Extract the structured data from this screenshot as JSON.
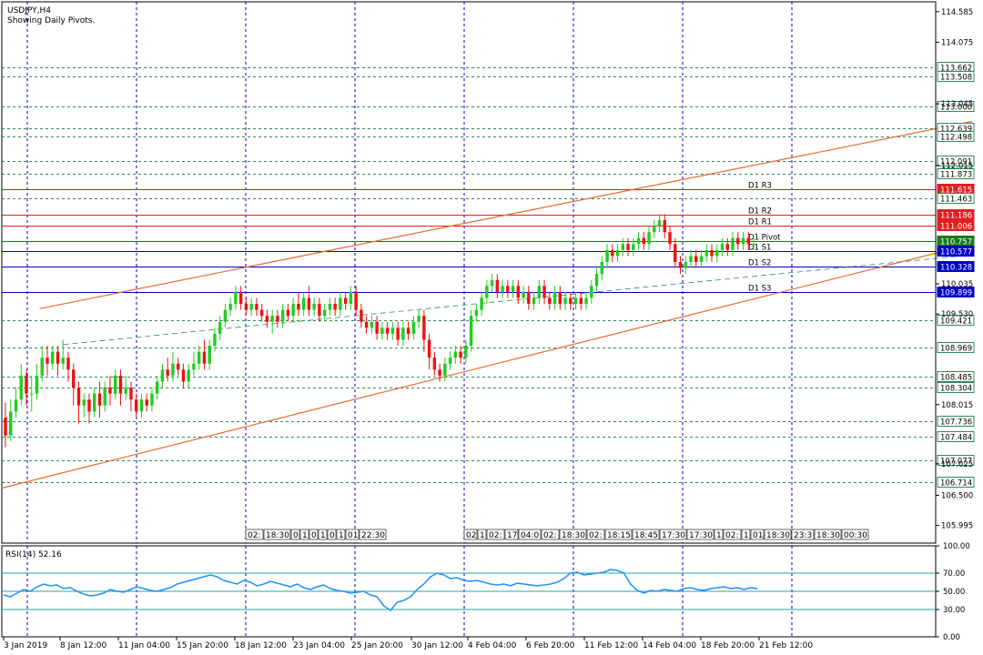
{
  "header": {
    "symbol": "USDJPY,H4",
    "subtitle": "Showing Daily Pivots."
  },
  "chart_data": {
    "type": "candlestick",
    "ylim": [
      105.7,
      114.75
    ],
    "price_ticks": [
      "114.585",
      "114.075",
      "113.045",
      "112.015",
      "110.035",
      "109.530",
      "108.015",
      "107.025",
      "106.500",
      "105.995"
    ],
    "x_labels": [
      "3 Jan 2019",
      "8 Jan 12:00",
      "11 Jan 04:00",
      "15 Jan 20:00",
      "18 Jan 12:00",
      "23 Jan 04:00",
      "25 Jan 20:00",
      "30 Jan 12:00",
      "4 Feb 04:00",
      "6 Feb 20:00",
      "11 Feb 12:00",
      "14 Feb 04:00",
      "18 Feb 20:00",
      "21 Feb 12:00"
    ],
    "vertical_grid_labels": [
      "3 Jan 2019",
      "8 Jan 12:00",
      "11 Jan 04:00",
      "15 Jan 20:00",
      "18 Jan 12:00",
      "23 Jan 04:00",
      "25 Jan 20:00",
      "30 Jan 12:00",
      "4 Feb 04:00",
      "6 Feb 20:00",
      "11 Feb 12:00",
      "14 Feb 04:00",
      "18 Feb 20:00",
      "21 Feb 12:00"
    ],
    "levels": [
      {
        "value": 113.662,
        "label": "113.662",
        "kind": "grid"
      },
      {
        "value": 113.508,
        "label": "113.508",
        "kind": "grid"
      },
      {
        "value": 113.0,
        "label": "113.000",
        "kind": "grid"
      },
      {
        "value": 112.639,
        "label": "112.639",
        "kind": "grid"
      },
      {
        "value": 112.498,
        "label": "112.498",
        "kind": "grid"
      },
      {
        "value": 112.091,
        "label": "112.091",
        "kind": "grid"
      },
      {
        "value": 111.873,
        "label": "111.873",
        "kind": "grid"
      },
      {
        "value": 111.615,
        "label": "111.615",
        "kind": "res",
        "name": "D1 R3"
      },
      {
        "value": 111.463,
        "label": "111.463",
        "kind": "grid"
      },
      {
        "value": 111.186,
        "label": "111.186",
        "kind": "res",
        "name": "D1 R2"
      },
      {
        "value": 111.006,
        "label": "111.006",
        "kind": "res",
        "name": "D1 R1"
      },
      {
        "value": 110.757,
        "label": "110.757",
        "kind": "pivot",
        "name": "D1 Pivot"
      },
      {
        "value": 110.577,
        "label": "110.577",
        "kind": "sup",
        "name": "D1 S1"
      },
      {
        "value": 110.328,
        "label": "110.328",
        "kind": "sup",
        "name": "D1 S2"
      },
      {
        "value": 109.899,
        "label": "109.899",
        "kind": "sup",
        "name": "D1 S3"
      },
      {
        "value": 109.421,
        "label": "109.421",
        "kind": "grid"
      },
      {
        "value": 108.969,
        "label": "108.969",
        "kind": "grid"
      },
      {
        "value": 108.485,
        "label": "108.485",
        "kind": "grid"
      },
      {
        "value": 108.304,
        "label": "108.304",
        "kind": "grid"
      },
      {
        "value": 107.736,
        "label": "107.736",
        "kind": "grid"
      },
      {
        "value": 107.484,
        "label": "107.484",
        "kind": "grid"
      },
      {
        "value": 107.077,
        "label": "107.077",
        "kind": "grid"
      },
      {
        "value": 106.714,
        "label": "106.714",
        "kind": "grid"
      }
    ],
    "trend_lines": [
      {
        "name": "upper-channel",
        "x0": 8,
        "y0": 109.62,
        "x1": 205,
        "y1": 112.75
      },
      {
        "name": "lower-channel",
        "x0": 0,
        "y0": 106.62,
        "x1": 205,
        "y1": 110.7
      },
      {
        "name": "mid-channel",
        "x0": 13,
        "y0": 109.02,
        "x1": 205,
        "y1": 110.52
      }
    ],
    "time_tags": [
      "02:",
      "18:30",
      "0",
      "1",
      "0",
      "1",
      "0",
      "1",
      "01",
      "22:30",
      "02",
      "1",
      "02:",
      "17",
      "04:0",
      "02:",
      "18:30",
      "02:",
      "18:15",
      "18:45",
      "17:30",
      "17:30",
      "1",
      "02:",
      "1",
      "01",
      "18:30",
      "23:3",
      "18:30",
      "00:30"
    ],
    "candles": [
      [
        107.8,
        107.5,
        108.05,
        107.3
      ],
      [
        107.5,
        107.9,
        108.1,
        107.4
      ],
      [
        107.9,
        108.1,
        108.3,
        107.8
      ],
      [
        108.1,
        108.5,
        108.7,
        108.0
      ],
      [
        108.5,
        108.2,
        108.6,
        108.0
      ],
      [
        108.2,
        108.2,
        108.5,
        107.9
      ],
      [
        108.2,
        108.5,
        108.7,
        108.1
      ],
      [
        108.5,
        108.8,
        109.0,
        108.4
      ],
      [
        108.8,
        108.7,
        109.0,
        108.5
      ],
      [
        108.7,
        108.9,
        109.0,
        108.6
      ],
      [
        108.9,
        108.7,
        109.0,
        108.5
      ],
      [
        108.7,
        108.8,
        109.1,
        108.6
      ],
      [
        108.8,
        108.6,
        108.9,
        108.4
      ],
      [
        108.6,
        108.3,
        108.7,
        108.0
      ],
      [
        108.3,
        108.0,
        108.4,
        107.7
      ],
      [
        108.0,
        108.1,
        108.2,
        107.8
      ],
      [
        108.1,
        107.9,
        108.2,
        107.7
      ],
      [
        107.9,
        108.2,
        108.3,
        107.8
      ],
      [
        108.2,
        108.0,
        108.4,
        107.8
      ],
      [
        108.0,
        108.3,
        108.4,
        107.9
      ],
      [
        108.3,
        108.2,
        108.5,
        108.0
      ],
      [
        108.2,
        108.5,
        108.6,
        108.1
      ],
      [
        108.5,
        108.2,
        108.6,
        108.0
      ],
      [
        108.2,
        108.3,
        108.5,
        108.1
      ],
      [
        108.3,
        108.1,
        108.4,
        107.9
      ],
      [
        108.1,
        107.9,
        108.2,
        107.8
      ],
      [
        107.9,
        108.1,
        108.2,
        107.8
      ],
      [
        108.1,
        108.0,
        108.2,
        107.9
      ],
      [
        108.0,
        108.2,
        108.3,
        107.9
      ],
      [
        108.2,
        108.4,
        108.5,
        108.1
      ],
      [
        108.4,
        108.6,
        108.7,
        108.3
      ],
      [
        108.6,
        108.5,
        108.8,
        108.4
      ],
      [
        108.5,
        108.7,
        108.9,
        108.4
      ],
      [
        108.7,
        108.6,
        108.8,
        108.5
      ],
      [
        108.6,
        108.4,
        108.7,
        108.3
      ],
      [
        108.4,
        108.6,
        108.7,
        108.3
      ],
      [
        108.6,
        108.7,
        108.9,
        108.5
      ],
      [
        108.7,
        108.9,
        109.0,
        108.6
      ],
      [
        108.9,
        108.7,
        109.1,
        108.6
      ],
      [
        108.7,
        109.0,
        109.1,
        108.6
      ],
      [
        109.0,
        109.2,
        109.3,
        108.9
      ],
      [
        109.2,
        109.4,
        109.5,
        109.1
      ],
      [
        109.4,
        109.6,
        109.7,
        109.3
      ],
      [
        109.6,
        109.7,
        109.8,
        109.5
      ],
      [
        109.7,
        109.9,
        110.0,
        109.6
      ],
      [
        109.9,
        109.7,
        110.0,
        109.6
      ],
      [
        109.7,
        109.6,
        109.8,
        109.5
      ],
      [
        109.6,
        109.7,
        109.8,
        109.5
      ],
      [
        109.7,
        109.6,
        109.8,
        109.5
      ],
      [
        109.6,
        109.5,
        109.7,
        109.4
      ],
      [
        109.5,
        109.4,
        109.6,
        109.3
      ],
      [
        109.4,
        109.5,
        109.6,
        109.2
      ],
      [
        109.5,
        109.4,
        109.6,
        109.3
      ],
      [
        109.4,
        109.6,
        109.7,
        109.3
      ],
      [
        109.6,
        109.5,
        109.7,
        109.4
      ],
      [
        109.5,
        109.7,
        109.8,
        109.4
      ],
      [
        109.7,
        109.6,
        109.9,
        109.5
      ],
      [
        109.6,
        109.8,
        109.9,
        109.5
      ],
      [
        109.8,
        109.6,
        110.0,
        109.5
      ],
      [
        109.6,
        109.7,
        109.8,
        109.5
      ],
      [
        109.7,
        109.5,
        109.8,
        109.4
      ],
      [
        109.5,
        109.6,
        109.7,
        109.4
      ],
      [
        109.6,
        109.7,
        109.8,
        109.5
      ],
      [
        109.7,
        109.6,
        109.8,
        109.5
      ],
      [
        109.6,
        109.8,
        109.9,
        109.5
      ],
      [
        109.8,
        109.7,
        109.9,
        109.6
      ],
      [
        109.7,
        109.9,
        110.0,
        109.6
      ],
      [
        109.9,
        109.6,
        110.0,
        109.5
      ],
      [
        109.6,
        109.4,
        109.7,
        109.3
      ],
      [
        109.4,
        109.3,
        109.5,
        109.2
      ],
      [
        109.3,
        109.4,
        109.5,
        109.2
      ],
      [
        109.4,
        109.2,
        109.5,
        109.1
      ],
      [
        109.2,
        109.3,
        109.4,
        109.1
      ],
      [
        109.3,
        109.2,
        109.4,
        109.1
      ],
      [
        109.2,
        109.3,
        109.4,
        109.1
      ],
      [
        109.3,
        109.1,
        109.4,
        109.0
      ],
      [
        109.1,
        109.3,
        109.4,
        109.0
      ],
      [
        109.3,
        109.2,
        109.4,
        109.1
      ],
      [
        109.2,
        109.4,
        109.5,
        109.1
      ],
      [
        109.4,
        109.5,
        109.6,
        109.3
      ],
      [
        109.5,
        109.1,
        109.6,
        108.9
      ],
      [
        109.1,
        108.8,
        109.2,
        108.6
      ],
      [
        108.8,
        108.6,
        108.9,
        108.5
      ],
      [
        108.6,
        108.5,
        108.7,
        108.4
      ],
      [
        108.5,
        108.7,
        108.8,
        108.4
      ],
      [
        108.7,
        108.8,
        108.9,
        108.6
      ],
      [
        108.8,
        108.9,
        109.0,
        108.7
      ],
      [
        108.9,
        108.8,
        109.0,
        108.7
      ],
      [
        108.8,
        109.0,
        109.1,
        108.7
      ],
      [
        109.0,
        109.5,
        109.6,
        108.9
      ],
      [
        109.5,
        109.6,
        109.7,
        109.4
      ],
      [
        109.6,
        109.8,
        109.9,
        109.5
      ],
      [
        109.8,
        110.0,
        110.1,
        109.7
      ],
      [
        110.0,
        110.1,
        110.2,
        109.9
      ],
      [
        110.1,
        109.9,
        110.2,
        109.8
      ],
      [
        109.9,
        110.0,
        110.1,
        109.8
      ],
      [
        110.0,
        109.9,
        110.1,
        109.8
      ],
      [
        109.9,
        110.0,
        110.1,
        109.8
      ],
      [
        110.0,
        109.8,
        110.1,
        109.7
      ],
      [
        109.8,
        109.9,
        110.0,
        109.7
      ],
      [
        109.9,
        109.7,
        110.0,
        109.6
      ],
      [
        109.7,
        109.8,
        109.9,
        109.6
      ],
      [
        109.8,
        110.0,
        110.1,
        109.7
      ],
      [
        110.0,
        109.8,
        110.1,
        109.7
      ],
      [
        109.8,
        109.7,
        109.9,
        109.6
      ],
      [
        109.7,
        109.9,
        110.0,
        109.6
      ],
      [
        109.9,
        109.7,
        110.0,
        109.6
      ],
      [
        109.7,
        109.8,
        109.9,
        109.6
      ],
      [
        109.8,
        109.7,
        109.9,
        109.6
      ],
      [
        109.7,
        109.8,
        109.9,
        109.6
      ],
      [
        109.8,
        109.7,
        109.9,
        109.6
      ],
      [
        109.7,
        109.8,
        109.9,
        109.6
      ],
      [
        109.8,
        110.0,
        110.1,
        109.7
      ],
      [
        110.0,
        110.2,
        110.3,
        109.9
      ],
      [
        110.2,
        110.4,
        110.5,
        110.1
      ],
      [
        110.4,
        110.6,
        110.7,
        110.3
      ],
      [
        110.6,
        110.5,
        110.7,
        110.4
      ],
      [
        110.5,
        110.6,
        110.7,
        110.4
      ],
      [
        110.6,
        110.7,
        110.8,
        110.5
      ],
      [
        110.7,
        110.6,
        110.8,
        110.5
      ],
      [
        110.6,
        110.7,
        110.8,
        110.5
      ],
      [
        110.7,
        110.8,
        110.9,
        110.6
      ],
      [
        110.8,
        110.7,
        110.9,
        110.6
      ],
      [
        110.7,
        110.9,
        111.0,
        110.6
      ],
      [
        110.9,
        111.0,
        111.1,
        110.8
      ],
      [
        111.0,
        111.1,
        111.2,
        110.9
      ],
      [
        111.1,
        110.9,
        111.2,
        110.8
      ],
      [
        110.9,
        110.7,
        111.0,
        110.6
      ],
      [
        110.7,
        110.4,
        110.8,
        110.3
      ],
      [
        110.4,
        110.3,
        110.5,
        110.2
      ],
      [
        110.3,
        110.4,
        110.5,
        110.2
      ],
      [
        110.4,
        110.5,
        110.6,
        110.3
      ],
      [
        110.5,
        110.4,
        110.6,
        110.3
      ],
      [
        110.4,
        110.5,
        110.6,
        110.3
      ],
      [
        110.5,
        110.6,
        110.7,
        110.4
      ],
      [
        110.6,
        110.5,
        110.7,
        110.4
      ],
      [
        110.5,
        110.6,
        110.7,
        110.4
      ],
      [
        110.6,
        110.7,
        110.8,
        110.5
      ],
      [
        110.7,
        110.6,
        110.8,
        110.5
      ],
      [
        110.6,
        110.8,
        110.9,
        110.5
      ],
      [
        110.8,
        110.7,
        110.9,
        110.6
      ],
      [
        110.7,
        110.8,
        110.9,
        110.6
      ],
      [
        110.8,
        110.7,
        110.9,
        110.6
      ],
      [
        110.7,
        110.7,
        110.85,
        110.6
      ]
    ],
    "rsi": {
      "label": "RSI(14) 52.16",
      "ylim": [
        0,
        100
      ],
      "ticks": [
        "100.00",
        "70.00",
        "50.00",
        "30.00",
        "0.00"
      ],
      "levels": [
        70,
        50,
        30
      ],
      "values": [
        46,
        44,
        48,
        52,
        50,
        55,
        58,
        56,
        57,
        53,
        54,
        50,
        47,
        45,
        46,
        48,
        52,
        50,
        49,
        52,
        55,
        53,
        51,
        50,
        52,
        54,
        58,
        60,
        62,
        64,
        66,
        68,
        66,
        62,
        60,
        58,
        62,
        60,
        56,
        58,
        61,
        59,
        57,
        55,
        58,
        54,
        52,
        55,
        57,
        53,
        51,
        50,
        48,
        49,
        50,
        46,
        44,
        34,
        29,
        38,
        40,
        44,
        52,
        58,
        66,
        70,
        68,
        64,
        65,
        62,
        61,
        62,
        60,
        58,
        57,
        58,
        56,
        59,
        58,
        57,
        56,
        57,
        58,
        60,
        64,
        70,
        71,
        68,
        69,
        70,
        71,
        74,
        73,
        70,
        58,
        51,
        48,
        51,
        50,
        52,
        51,
        50,
        53,
        54,
        52,
        51,
        53,
        54,
        55,
        53,
        54,
        52,
        54,
        53
      ]
    }
  }
}
